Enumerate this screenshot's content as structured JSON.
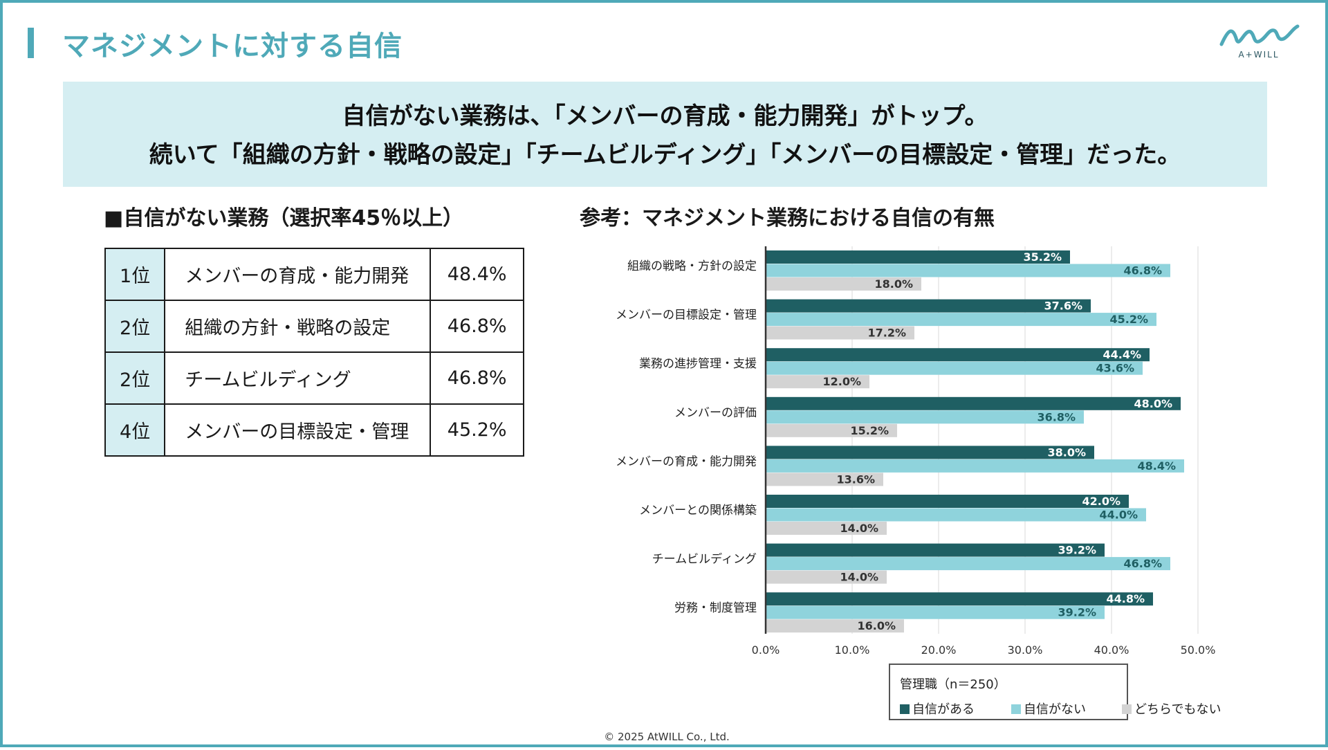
{
  "slide": {
    "title": "マネジメントに対する自信",
    "logo_text": "A+WILL",
    "copyright": "© 2025 AtWILL Co., Ltd."
  },
  "summary": {
    "line1": "自信がない業務は、「メンバーの育成・能力開発」がトップ。",
    "line2": "続いて「組織の方針・戦略の設定」「チームビルディング」「メンバーの目標設定・管理」だった。"
  },
  "ranking": {
    "heading": "■自信がない業務（選択率45％以上）",
    "rows": [
      {
        "rank": "1位",
        "task": "メンバーの育成・能力開発",
        "pct": "48.4%"
      },
      {
        "rank": "2位",
        "task": "組織の方針・戦略の設定",
        "pct": "46.8%"
      },
      {
        "rank": "2位",
        "task": "チームビルディング",
        "pct": "46.8%"
      },
      {
        "rank": "4位",
        "task": "メンバーの目標設定・管理",
        "pct": "45.2%"
      }
    ]
  },
  "reference": {
    "heading": "参考：マネジメント業務における自信の有無"
  },
  "colors": {
    "accent": "#4fa9b8",
    "confident": "#1f5f63",
    "not_confident": "#8fd3dc",
    "neutral": "#d3d3d3"
  },
  "chart_data": {
    "type": "bar",
    "orientation": "horizontal",
    "title": "参考：マネジメント業務における自信の有無",
    "categories": [
      "組織の戦略・方針の設定",
      "メンバーの目標設定・管理",
      "業務の進捗管理・支援",
      "メンバーの評価",
      "メンバーの育成・能力開発",
      "メンバーとの関係構築",
      "チームビルディング",
      "労務・制度管理"
    ],
    "series": [
      {
        "name": "自信がある",
        "values": [
          35.2,
          37.6,
          44.4,
          48.0,
          38.0,
          42.0,
          39.2,
          44.8
        ]
      },
      {
        "name": "自信がない",
        "values": [
          46.8,
          45.2,
          43.6,
          36.8,
          48.4,
          44.0,
          46.8,
          39.2
        ]
      },
      {
        "name": "どちらでもない",
        "values": [
          18.0,
          17.2,
          12.0,
          15.2,
          13.6,
          14.0,
          14.0,
          16.0
        ]
      }
    ],
    "xlim": [
      0,
      50
    ],
    "xticks": [
      "0.0%",
      "10.0%",
      "20.0%",
      "30.0%",
      "40.0%",
      "50.0%"
    ],
    "grid": true,
    "legend_title": "管理職（n＝250）",
    "legend_position": "bottom-right"
  }
}
